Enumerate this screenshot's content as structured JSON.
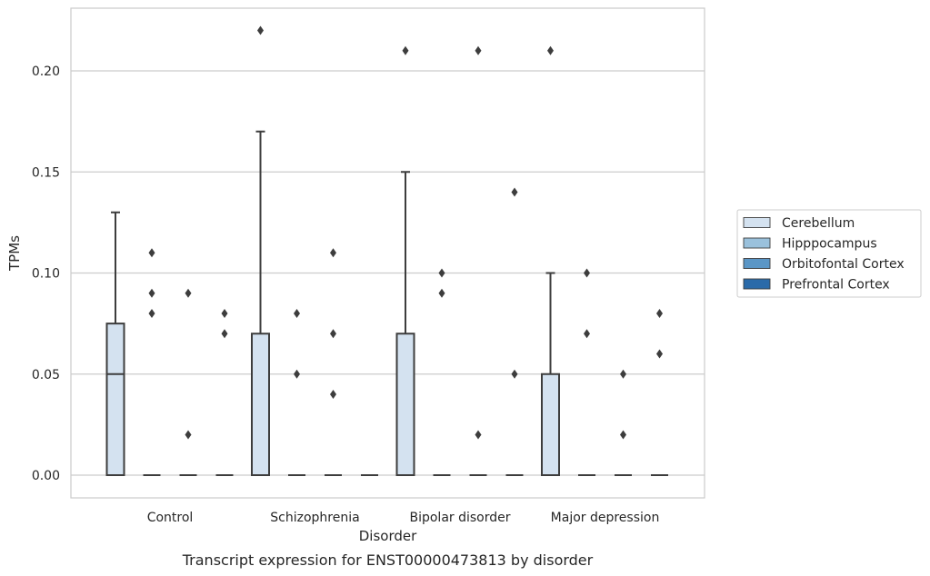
{
  "chart_data": {
    "type": "box",
    "caption": "Transcript expression for ENST00000473813 by disorder",
    "xlabel": "Disorder",
    "ylabel": "TPMs",
    "ylim": [
      -0.011,
      0.231
    ],
    "yticks": [
      0.0,
      0.05,
      0.1,
      0.15,
      0.2
    ],
    "ytick_labels": [
      "0.00",
      "0.05",
      "0.10",
      "0.15",
      "0.20"
    ],
    "grid": "horizontal",
    "legend_position": "right",
    "categories": [
      "Control",
      "Schizophrenia",
      "Bipolar disorder",
      "Major depression"
    ],
    "series": [
      {
        "name": "Cerebellum",
        "color": "#d4e2f0",
        "boxes": [
          {
            "q1": 0.0,
            "median": 0.05,
            "q3": 0.075,
            "whisker_low": 0.0,
            "whisker_high": 0.13,
            "outliers": []
          },
          {
            "q1": 0.0,
            "median": 0.0,
            "q3": 0.07,
            "whisker_low": 0.0,
            "whisker_high": 0.17,
            "outliers": [
              0.22
            ]
          },
          {
            "q1": 0.0,
            "median": 0.0,
            "q3": 0.07,
            "whisker_low": 0.0,
            "whisker_high": 0.15,
            "outliers": [
              0.21
            ]
          },
          {
            "q1": 0.0,
            "median": 0.0,
            "q3": 0.05,
            "whisker_low": 0.0,
            "whisker_high": 0.1,
            "outliers": [
              0.21
            ]
          }
        ]
      },
      {
        "name": "Hipppocampus",
        "color": "#9ac1dc",
        "boxes": [
          {
            "q1": 0.0,
            "median": 0.0,
            "q3": 0.0,
            "whisker_low": 0.0,
            "whisker_high": 0.0,
            "outliers": [
              0.08,
              0.09,
              0.11
            ]
          },
          {
            "q1": 0.0,
            "median": 0.0,
            "q3": 0.0,
            "whisker_low": 0.0,
            "whisker_high": 0.0,
            "outliers": [
              0.05,
              0.08
            ]
          },
          {
            "q1": 0.0,
            "median": 0.0,
            "q3": 0.0,
            "whisker_low": 0.0,
            "whisker_high": 0.0,
            "outliers": [
              0.09,
              0.1
            ]
          },
          {
            "q1": 0.0,
            "median": 0.0,
            "q3": 0.0,
            "whisker_low": 0.0,
            "whisker_high": 0.0,
            "outliers": [
              0.07,
              0.1
            ]
          }
        ]
      },
      {
        "name": "Orbitofontal Cortex",
        "color": "#5a96c6",
        "boxes": [
          {
            "q1": 0.0,
            "median": 0.0,
            "q3": 0.0,
            "whisker_low": 0.0,
            "whisker_high": 0.0,
            "outliers": [
              0.02,
              0.09
            ]
          },
          {
            "q1": 0.0,
            "median": 0.0,
            "q3": 0.0,
            "whisker_low": 0.0,
            "whisker_high": 0.0,
            "outliers": [
              0.04,
              0.07,
              0.11
            ]
          },
          {
            "q1": 0.0,
            "median": 0.0,
            "q3": 0.0,
            "whisker_low": 0.0,
            "whisker_high": 0.0,
            "outliers": [
              0.02,
              0.21
            ]
          },
          {
            "q1": 0.0,
            "median": 0.0,
            "q3": 0.0,
            "whisker_low": 0.0,
            "whisker_high": 0.0,
            "outliers": [
              0.02,
              0.05
            ]
          }
        ]
      },
      {
        "name": "Prefrontal Cortex",
        "color": "#2a6aa9",
        "boxes": [
          {
            "q1": 0.0,
            "median": 0.0,
            "q3": 0.0,
            "whisker_low": 0.0,
            "whisker_high": 0.0,
            "outliers": [
              0.07,
              0.08
            ]
          },
          {
            "q1": 0.0,
            "median": 0.0,
            "q3": 0.0,
            "whisker_low": 0.0,
            "whisker_high": 0.0,
            "outliers": []
          },
          {
            "q1": 0.0,
            "median": 0.0,
            "q3": 0.0,
            "whisker_low": 0.0,
            "whisker_high": 0.0,
            "outliers": [
              0.05,
              0.14
            ]
          },
          {
            "q1": 0.0,
            "median": 0.0,
            "q3": 0.0,
            "whisker_low": 0.0,
            "whisker_high": 0.0,
            "outliers": [
              0.06,
              0.08
            ]
          }
        ]
      }
    ],
    "colors": {
      "grid": "#cccccc",
      "frame": "#cccccc",
      "box_edge": "#3d3d3d",
      "outlier": "#3d3d3d",
      "text": "#262626"
    }
  }
}
